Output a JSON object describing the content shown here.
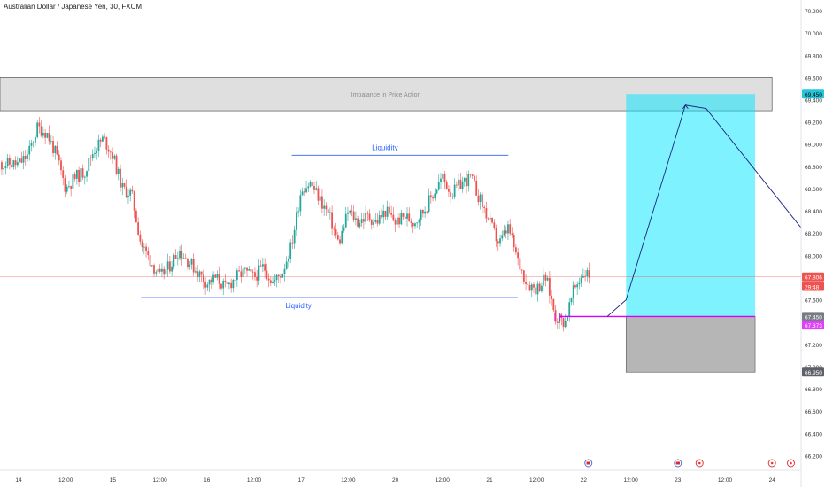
{
  "header": {
    "title": "Australian Dollar / Japanese Yen, 30, FXCM"
  },
  "chart_data": {
    "type": "candlestick",
    "symbol": "Australian Dollar / Japanese Yen",
    "timeframe": "30",
    "source": "FXCM",
    "ylim": [
      66.1,
      70.24
    ],
    "y_ticks": [
      "70.200",
      "70.000",
      "69.800",
      "69.600",
      "69.400",
      "69.200",
      "69.000",
      "68.800",
      "68.600",
      "68.400",
      "68.200",
      "68.000",
      "67.800",
      "67.600",
      "67.400",
      "67.200",
      "67.000",
      "66.800",
      "66.600",
      "66.400",
      "66.200"
    ],
    "x_ticks": [
      {
        "label": "14",
        "pos": 0.0
      },
      {
        "label": "12:00",
        "pos": 0.5
      },
      {
        "label": "15",
        "pos": 1.0
      },
      {
        "label": "12:00",
        "pos": 1.5
      },
      {
        "label": "16",
        "pos": 2.0
      },
      {
        "label": "12:00",
        "pos": 2.5
      },
      {
        "label": "17",
        "pos": 3.0
      },
      {
        "label": "12:00",
        "pos": 3.5
      },
      {
        "label": "20",
        "pos": 4.0
      },
      {
        "label": "12:00",
        "pos": 4.5
      },
      {
        "label": "21",
        "pos": 5.0
      },
      {
        "label": "12:00",
        "pos": 5.5
      },
      {
        "label": "22",
        "pos": 6.0
      },
      {
        "label": "12:00",
        "pos": 6.5
      },
      {
        "label": "23",
        "pos": 7.0
      },
      {
        "label": "12:00",
        "pos": 7.5
      },
      {
        "label": "24",
        "pos": 8.0
      }
    ],
    "close_path": [
      [
        0.0,
        68.82
      ],
      [
        0.1,
        68.9
      ],
      [
        0.2,
        69.15
      ],
      [
        0.3,
        69.1
      ],
      [
        0.4,
        68.9
      ],
      [
        0.5,
        68.6
      ],
      [
        0.6,
        68.7
      ],
      [
        0.7,
        68.75
      ],
      [
        0.8,
        68.95
      ],
      [
        0.9,
        69.05
      ],
      [
        1.0,
        68.9
      ],
      [
        1.1,
        68.6
      ],
      [
        1.2,
        68.55
      ],
      [
        1.3,
        68.1
      ],
      [
        1.4,
        67.95
      ],
      [
        1.5,
        67.8
      ],
      [
        1.6,
        67.9
      ],
      [
        1.7,
        68.05
      ],
      [
        1.8,
        67.95
      ],
      [
        1.9,
        67.85
      ],
      [
        2.0,
        67.75
      ],
      [
        2.1,
        67.8
      ],
      [
        2.2,
        67.7
      ],
      [
        2.3,
        67.8
      ],
      [
        2.4,
        67.85
      ],
      [
        2.5,
        67.8
      ],
      [
        2.6,
        67.9
      ],
      [
        2.7,
        67.75
      ],
      [
        2.8,
        67.85
      ],
      [
        2.9,
        68.1
      ],
      [
        3.0,
        68.6
      ],
      [
        3.1,
        68.65
      ],
      [
        3.2,
        68.5
      ],
      [
        3.3,
        68.35
      ],
      [
        3.4,
        68.1
      ],
      [
        3.5,
        68.4
      ],
      [
        3.6,
        68.3
      ],
      [
        3.7,
        68.35
      ],
      [
        3.8,
        68.3
      ],
      [
        3.9,
        68.4
      ],
      [
        4.0,
        68.3
      ],
      [
        4.1,
        68.35
      ],
      [
        4.2,
        68.3
      ],
      [
        4.3,
        68.4
      ],
      [
        4.4,
        68.55
      ],
      [
        4.5,
        68.7
      ],
      [
        4.6,
        68.55
      ],
      [
        4.7,
        68.65
      ],
      [
        4.8,
        68.7
      ],
      [
        4.9,
        68.5
      ],
      [
        5.0,
        68.3
      ],
      [
        5.1,
        68.1
      ],
      [
        5.2,
        68.25
      ],
      [
        5.3,
        67.95
      ],
      [
        5.4,
        67.75
      ],
      [
        5.5,
        67.7
      ],
      [
        5.6,
        67.8
      ],
      [
        5.7,
        67.45
      ],
      [
        5.8,
        67.4
      ],
      [
        5.9,
        67.7
      ],
      [
        6.0,
        67.85
      ],
      [
        6.1,
        67.8
      ]
    ],
    "price_labels": [
      {
        "value": "69.450",
        "price": 69.45,
        "color": "#26c6da",
        "text_color": "#000000"
      },
      {
        "value": "67.806",
        "price": 67.806,
        "color": "#ef5350",
        "text_color": "#ffffff"
      },
      {
        "value": "29:48",
        "price": 67.72,
        "color": "#ef5350",
        "text_color": "#ffffff"
      },
      {
        "value": "67.450",
        "price": 67.45,
        "color": "#787b86",
        "text_color": "#ffffff"
      },
      {
        "value": "67.373",
        "price": 67.373,
        "color": "#e040fb",
        "text_color": "#ffffff"
      },
      {
        "value": "66.950",
        "price": 66.95,
        "color": "#5d606b",
        "text_color": "#ffffff"
      }
    ],
    "annotations": {
      "imbalance_zone": {
        "label": "Imbalance in Price Action",
        "top": 69.6,
        "bottom": 69.3,
        "x_start": -0.3,
        "x_end": 8.0
      },
      "liquidity_top": {
        "label": "Liquidity",
        "price": 68.9,
        "x_start": 2.9,
        "x_end": 5.2
      },
      "liquidity_bottom": {
        "label": "Liquidity",
        "price": 67.62,
        "x_start": 1.3,
        "x_end": 5.3
      },
      "target_box": {
        "top": 69.45,
        "bottom": 67.45,
        "x_start": 6.45,
        "x_end": 7.82
      },
      "stop_box": {
        "top": 67.45,
        "bottom": 66.95,
        "x_start": 6.45,
        "x_end": 7.82
      },
      "entry_line": {
        "price": 67.45,
        "x_start": 5.75,
        "x_end": 7.82
      },
      "projection_path": [
        [
          6.25,
          67.45
        ],
        [
          6.45,
          67.6
        ],
        [
          7.08,
          69.35
        ],
        [
          7.3,
          69.32
        ],
        [
          8.4,
          68.15
        ]
      ]
    },
    "colors": {
      "up": "#26a69a",
      "down": "#ef5350",
      "liquidity": "#2962ff",
      "projection": "#1a237e",
      "target": "#00e5ff",
      "stop": "#9e9e9e",
      "zone": "#d9d9d9",
      "entry": "#d500f9"
    }
  }
}
